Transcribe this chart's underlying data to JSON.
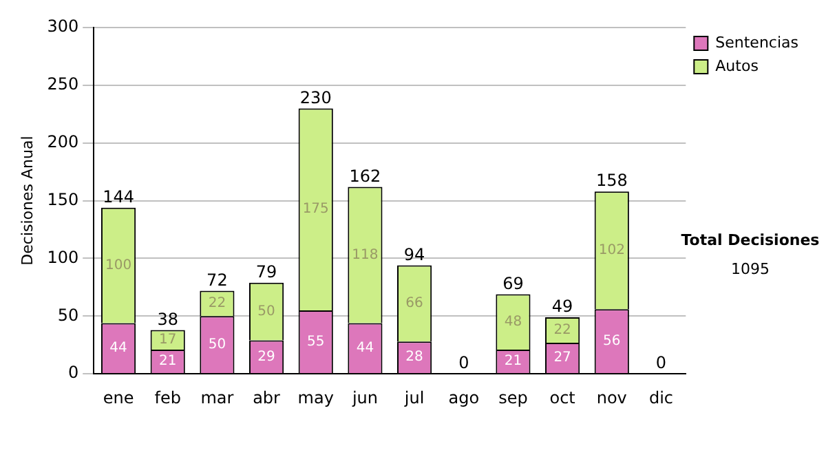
{
  "chart_data": {
    "type": "bar",
    "stacked": true,
    "ylabel": "Decisiones Anual",
    "categories": [
      "ene",
      "feb",
      "mar",
      "abr",
      "may",
      "jun",
      "jul",
      "ago",
      "sep",
      "oct",
      "nov",
      "dic"
    ],
    "series": [
      {
        "name": "Sentencias",
        "color": "#dd77bb",
        "values": [
          44,
          21,
          50,
          29,
          55,
          44,
          28,
          0,
          21,
          27,
          56,
          0
        ],
        "value_labels": [
          "44",
          "21",
          "50",
          "29",
          "55",
          "44",
          "28",
          null,
          "21",
          "27",
          "56",
          null
        ]
      },
      {
        "name": "Autos",
        "color": "#ccee88",
        "values": [
          100,
          17,
          22,
          50,
          175,
          118,
          66,
          0,
          48,
          22,
          102,
          0
        ],
        "value_labels": [
          "100",
          "17",
          "22",
          "50",
          "175",
          "118",
          "66",
          null,
          "48",
          "22",
          "102",
          null
        ]
      }
    ],
    "totals": [
      "144",
      "38",
      "72",
      "79",
      "230",
      "162",
      "94",
      "0",
      "69",
      "49",
      "158",
      "0"
    ],
    "ylim": [
      0,
      300
    ],
    "yticks": [
      0,
      50,
      100,
      150,
      200,
      250,
      300
    ],
    "grid": "y",
    "legend": "right",
    "annotations": [
      "Total Decisiones",
      "1095"
    ]
  }
}
